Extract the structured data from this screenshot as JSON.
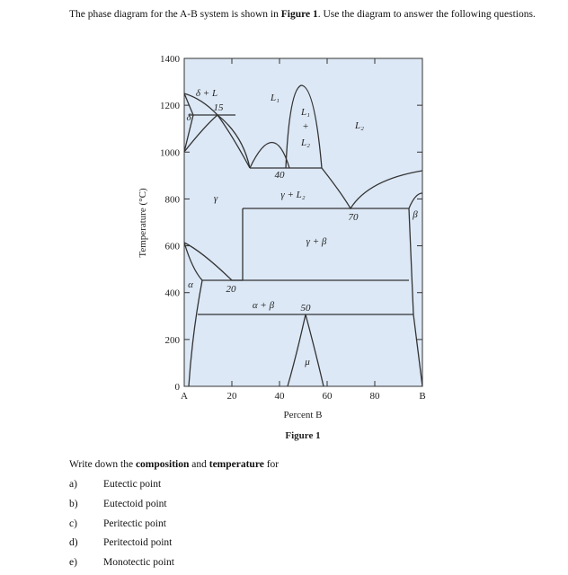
{
  "intro": {
    "text1": "The phase diagram for the A-B system is shown in ",
    "bold": "Figure 1",
    "text2": ". Use the diagram to answer the following questions."
  },
  "figure": {
    "y_axis_label": "Temperature (°C)",
    "x_axis_label": "Percent B",
    "caption": "Figure 1",
    "y_ticks": [
      "1400",
      "1200",
      "1000",
      "800",
      "600",
      "400",
      "200",
      "0"
    ],
    "x_ticks": [
      "A",
      "20",
      "40",
      "60",
      "80",
      "B"
    ],
    "labels": [
      "δ + L",
      "15",
      "δ",
      "L₁",
      "L₁",
      "+",
      "L₂",
      "L₂",
      "40",
      "γ + L₂",
      "γ",
      "70",
      "β",
      "γ + β",
      "α",
      "20",
      "α + β",
      "50",
      "μ"
    ]
  },
  "prompt": {
    "text1": "Write down the ",
    "bold1": "composition",
    "text2": " and ",
    "bold2": "temperature",
    "text3": " for"
  },
  "questions": [
    {
      "label": "a)",
      "text": "Eutectic point"
    },
    {
      "label": "b)",
      "text": "Eutectoid point"
    },
    {
      "label": "c)",
      "text": "Peritectic point"
    },
    {
      "label": "d)",
      "text": "Peritectoid point"
    },
    {
      "label": "e)",
      "text": "Monotectic point"
    }
  ]
}
